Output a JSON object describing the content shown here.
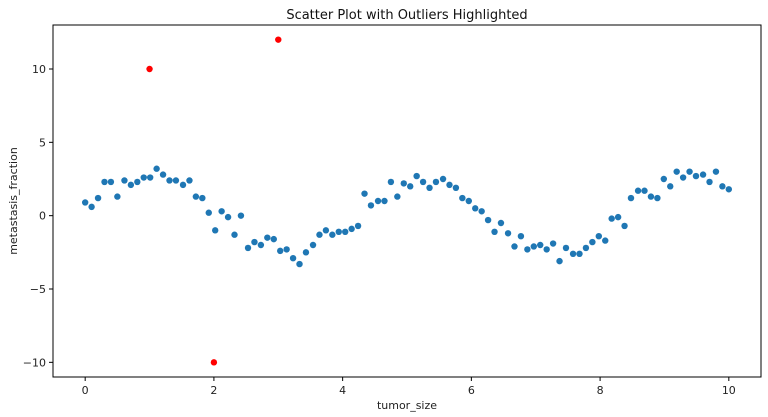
{
  "chart_data": {
    "type": "scatter",
    "title": "Scatter Plot with Outliers Highlighted",
    "xlabel": "tumor_size",
    "ylabel": "metastasis_fraction",
    "xlim": [
      -0.5,
      10.5
    ],
    "ylim": [
      -11.0,
      13.0
    ],
    "xticks": [
      0,
      2,
      4,
      6,
      8,
      10
    ],
    "yticks": [
      -10,
      -5,
      0,
      5,
      10
    ],
    "xtick_labels": [
      "0",
      "2",
      "4",
      "6",
      "8",
      "10"
    ],
    "ytick_labels": [
      "−10",
      "−5",
      "0",
      "5",
      "10"
    ],
    "grid": false,
    "colors": {
      "normal": "#1f77b4",
      "outlier": "#ff0000"
    },
    "series": [
      {
        "values": [
          [
            0.0,
            0.9
          ],
          [
            0.1,
            0.6
          ],
          [
            0.2,
            1.2
          ],
          [
            0.3,
            2.3
          ],
          [
            0.4,
            2.3
          ],
          [
            0.5,
            1.3
          ],
          [
            0.61,
            2.4
          ],
          [
            0.71,
            2.1
          ],
          [
            0.81,
            2.3
          ],
          [
            0.91,
            2.6
          ],
          [
            1.01,
            2.6
          ],
          [
            1.11,
            3.2
          ],
          [
            1.21,
            2.8
          ],
          [
            1.31,
            2.4
          ],
          [
            1.41,
            2.4
          ],
          [
            1.52,
            2.1
          ],
          [
            1.62,
            2.4
          ],
          [
            1.72,
            1.3
          ],
          [
            1.82,
            1.2
          ],
          [
            1.92,
            0.2
          ],
          [
            2.02,
            -1.0
          ],
          [
            2.12,
            0.3
          ],
          [
            2.22,
            -0.1
          ],
          [
            2.32,
            -1.3
          ],
          [
            2.42,
            0.0
          ],
          [
            2.53,
            -2.2
          ],
          [
            2.63,
            -1.8
          ],
          [
            2.73,
            -2.0
          ],
          [
            2.83,
            -1.5
          ],
          [
            2.93,
            -1.6
          ],
          [
            3.03,
            -2.4
          ],
          [
            3.13,
            -2.3
          ],
          [
            3.23,
            -2.9
          ],
          [
            3.33,
            -3.3
          ],
          [
            3.43,
            -2.5
          ],
          [
            3.54,
            -2.0
          ],
          [
            3.64,
            -1.3
          ],
          [
            3.74,
            -1.0
          ],
          [
            3.84,
            -1.3
          ],
          [
            3.94,
            -1.1
          ],
          [
            4.04,
            -1.1
          ],
          [
            4.14,
            -0.9
          ],
          [
            4.24,
            -0.7
          ],
          [
            4.34,
            1.5
          ],
          [
            4.44,
            0.7
          ],
          [
            4.55,
            1.0
          ],
          [
            4.65,
            1.0
          ],
          [
            4.75,
            2.3
          ],
          [
            4.85,
            1.3
          ],
          [
            4.95,
            2.2
          ],
          [
            5.05,
            2.0
          ],
          [
            5.15,
            2.7
          ],
          [
            5.25,
            2.3
          ],
          [
            5.35,
            1.9
          ],
          [
            5.45,
            2.3
          ],
          [
            5.56,
            2.5
          ],
          [
            5.66,
            2.1
          ],
          [
            5.76,
            1.9
          ],
          [
            5.86,
            1.2
          ],
          [
            5.96,
            1.0
          ],
          [
            6.06,
            0.5
          ],
          [
            6.16,
            0.3
          ],
          [
            6.26,
            -0.3
          ],
          [
            6.36,
            -1.1
          ],
          [
            6.46,
            -0.5
          ],
          [
            6.57,
            -1.2
          ],
          [
            6.67,
            -2.1
          ],
          [
            6.77,
            -1.4
          ],
          [
            6.87,
            -2.3
          ],
          [
            6.97,
            -2.1
          ],
          [
            7.07,
            -2.0
          ],
          [
            7.17,
            -2.3
          ],
          [
            7.27,
            -1.9
          ],
          [
            7.37,
            -3.1
          ],
          [
            7.47,
            -2.2
          ],
          [
            7.58,
            -2.6
          ],
          [
            7.68,
            -2.6
          ],
          [
            7.78,
            -2.2
          ],
          [
            7.88,
            -1.8
          ],
          [
            7.98,
            -1.4
          ],
          [
            8.08,
            -1.7
          ],
          [
            8.18,
            -0.2
          ],
          [
            8.28,
            -0.1
          ],
          [
            8.38,
            -0.7
          ],
          [
            8.48,
            1.2
          ],
          [
            8.59,
            1.7
          ],
          [
            8.69,
            1.7
          ],
          [
            8.79,
            1.3
          ],
          [
            8.89,
            1.2
          ],
          [
            8.99,
            2.5
          ],
          [
            9.09,
            2.0
          ],
          [
            9.19,
            3.0
          ],
          [
            9.29,
            2.6
          ],
          [
            9.39,
            3.0
          ],
          [
            9.49,
            2.7
          ],
          [
            9.6,
            2.8
          ],
          [
            9.7,
            2.3
          ],
          [
            9.8,
            3.0
          ],
          [
            9.9,
            2.0
          ],
          [
            10.0,
            1.8
          ]
        ]
      },
      {
        "values": [
          [
            1.0,
            10.0
          ],
          [
            2.0,
            -10.0
          ],
          [
            3.0,
            12.0
          ]
        ]
      }
    ]
  }
}
